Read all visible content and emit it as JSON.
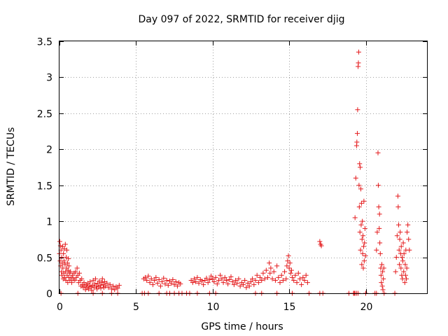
{
  "chart_data": {
    "type": "scatter",
    "title": "Day 097 of 2022, SRMTID for receiver djig",
    "xlabel": "GPS time / hours",
    "ylabel": "SRMTID / TECUs",
    "xlim": [
      0,
      24
    ],
    "ylim": [
      0,
      3.5
    ],
    "x_ticks": [
      0,
      5,
      10,
      15,
      20
    ],
    "x_tick_labels": [
      "0",
      "5",
      "10",
      "15",
      "20"
    ],
    "y_ticks": [
      0,
      0.5,
      1,
      1.5,
      2,
      2.5,
      3,
      3.5
    ],
    "y_tick_labels": [
      "0",
      "0.5",
      "1",
      "1.5",
      "2",
      "2.5",
      "3",
      "3.5"
    ],
    "grid": true,
    "marker": "plus",
    "color": "#e41a1c",
    "series": [
      {
        "name": "SRMTID",
        "points": [
          [
            0.0,
            0.55
          ],
          [
            0.02,
            0.72
          ],
          [
            0.04,
            0.45
          ],
          [
            0.06,
            0.66
          ],
          [
            0.08,
            0.38
          ],
          [
            0.1,
            0.6
          ],
          [
            0.12,
            0.3
          ],
          [
            0.14,
            0.5
          ],
          [
            0.16,
            0.25
          ],
          [
            0.18,
            0.42
          ],
          [
            0.2,
            0.65
          ],
          [
            0.22,
            0.35
          ],
          [
            0.24,
            0.2
          ],
          [
            0.26,
            0.55
          ],
          [
            0.28,
            0.28
          ],
          [
            0.3,
            0.45
          ],
          [
            0.32,
            0.62
          ],
          [
            0.34,
            0.22
          ],
          [
            0.36,
            0.4
          ],
          [
            0.38,
            0.68
          ],
          [
            0.4,
            0.3
          ],
          [
            0.42,
            0.18
          ],
          [
            0.44,
            0.5
          ],
          [
            0.46,
            0.35
          ],
          [
            0.48,
            0.6
          ],
          [
            0.5,
            0.25
          ],
          [
            0.52,
            0.42
          ],
          [
            0.54,
            0.15
          ],
          [
            0.56,
            0.32
          ],
          [
            0.58,
            0.48
          ],
          [
            0.6,
            0.22
          ],
          [
            0.62,
            0.38
          ],
          [
            0.65,
            0.28
          ],
          [
            0.68,
            0.18
          ],
          [
            0.72,
            0.3
          ],
          [
            0.76,
            0.22
          ],
          [
            0.8,
            0.15
          ],
          [
            0.85,
            0.25
          ],
          [
            0.9,
            0.2
          ],
          [
            0.95,
            0.28
          ],
          [
            1.0,
            0.18
          ],
          [
            1.05,
            0.3
          ],
          [
            1.1,
            0.22
          ],
          [
            1.15,
            0.35
          ],
          [
            1.2,
            0.25
          ],
          [
            1.25,
            0.15
          ],
          [
            1.3,
            0.28
          ],
          [
            1.35,
            0.18
          ],
          [
            1.4,
            0.1
          ],
          [
            1.45,
            0.2
          ],
          [
            1.5,
            0.12
          ],
          [
            1.55,
            0.08
          ],
          [
            1.6,
            0.15
          ],
          [
            1.65,
            0.1
          ],
          [
            1.7,
            0.05
          ],
          [
            1.75,
            0.12
          ],
          [
            1.8,
            0.08
          ],
          [
            1.85,
            0.14
          ],
          [
            1.9,
            0.06
          ],
          [
            1.95,
            0.1
          ],
          [
            2.0,
            0.16
          ],
          [
            2.05,
            0.09
          ],
          [
            2.1,
            0.04
          ],
          [
            2.15,
            0.11
          ],
          [
            2.2,
            0.18
          ],
          [
            2.25,
            0.08
          ],
          [
            2.3,
            0.13
          ],
          [
            2.35,
            0.2
          ],
          [
            2.4,
            0.1
          ],
          [
            2.45,
            0.06
          ],
          [
            2.5,
            0.14
          ],
          [
            2.55,
            0.09
          ],
          [
            2.6,
            0.17
          ],
          [
            2.65,
            0.11
          ],
          [
            2.7,
            0.07
          ],
          [
            2.75,
            0.15
          ],
          [
            2.8,
            0.2
          ],
          [
            2.85,
            0.12
          ],
          [
            2.9,
            0.08
          ],
          [
            2.95,
            0.16
          ],
          [
            3.0,
            0.1
          ],
          [
            3.1,
            0.14
          ],
          [
            3.2,
            0.08
          ],
          [
            3.3,
            0.12
          ],
          [
            3.4,
            0.06
          ],
          [
            3.5,
            0.1
          ],
          [
            3.6,
            0.05
          ],
          [
            3.7,
            0.09
          ],
          [
            3.8,
            0.07
          ],
          [
            3.9,
            0.11
          ],
          [
            0.1,
            0.0
          ],
          [
            1.2,
            0.0
          ],
          [
            2.2,
            0.0
          ],
          [
            2.8,
            0.0
          ],
          [
            3.4,
            0.0
          ],
          [
            3.8,
            0.0
          ],
          [
            5.4,
            0.0
          ],
          [
            5.55,
            0.0
          ],
          [
            5.8,
            0.0
          ],
          [
            6.5,
            0.0
          ],
          [
            7.0,
            0.0
          ],
          [
            7.2,
            0.0
          ],
          [
            7.5,
            0.0
          ],
          [
            7.8,
            0.0
          ],
          [
            8.0,
            0.0
          ],
          [
            8.3,
            0.0
          ],
          [
            8.5,
            0.0
          ],
          [
            9.0,
            0.0
          ],
          [
            9.8,
            0.0
          ],
          [
            10.2,
            0.0
          ],
          [
            5.5,
            0.2
          ],
          [
            5.6,
            0.22
          ],
          [
            5.7,
            0.18
          ],
          [
            5.8,
            0.24
          ],
          [
            5.9,
            0.15
          ],
          [
            6.0,
            0.2
          ],
          [
            6.1,
            0.12
          ],
          [
            6.2,
            0.18
          ],
          [
            6.3,
            0.22
          ],
          [
            6.4,
            0.14
          ],
          [
            6.5,
            0.19
          ],
          [
            6.6,
            0.1
          ],
          [
            6.7,
            0.16
          ],
          [
            6.8,
            0.21
          ],
          [
            6.9,
            0.13
          ],
          [
            7.0,
            0.18
          ],
          [
            7.1,
            0.11
          ],
          [
            7.2,
            0.17
          ],
          [
            7.3,
            0.14
          ],
          [
            7.4,
            0.19
          ],
          [
            7.5,
            0.12
          ],
          [
            7.6,
            0.16
          ],
          [
            7.7,
            0.1
          ],
          [
            7.8,
            0.15
          ],
          [
            7.9,
            0.13
          ],
          [
            8.6,
            0.18
          ],
          [
            8.7,
            0.15
          ],
          [
            8.8,
            0.2
          ],
          [
            8.9,
            0.16
          ],
          [
            9.0,
            0.22
          ],
          [
            9.1,
            0.14
          ],
          [
            9.2,
            0.19
          ],
          [
            9.3,
            0.17
          ],
          [
            9.4,
            0.12
          ],
          [
            9.5,
            0.18
          ],
          [
            9.6,
            0.21
          ],
          [
            9.7,
            0.15
          ],
          [
            9.8,
            0.19
          ],
          [
            9.9,
            0.24
          ],
          [
            10.0,
            0.2
          ],
          [
            10.1,
            0.16
          ],
          [
            10.2,
            0.22
          ],
          [
            10.3,
            0.13
          ],
          [
            10.4,
            0.18
          ],
          [
            10.5,
            0.25
          ],
          [
            10.6,
            0.2
          ],
          [
            10.7,
            0.15
          ],
          [
            10.8,
            0.22
          ],
          [
            10.9,
            0.18
          ],
          [
            11.0,
            0.13
          ],
          [
            11.1,
            0.19
          ],
          [
            11.2,
            0.23
          ],
          [
            11.3,
            0.16
          ],
          [
            11.4,
            0.12
          ],
          [
            11.5,
            0.18
          ],
          [
            11.6,
            0.14
          ],
          [
            11.7,
            0.2
          ],
          [
            11.8,
            0.1
          ],
          [
            11.9,
            0.15
          ],
          [
            12.0,
            0.12
          ],
          [
            12.1,
            0.18
          ],
          [
            12.2,
            0.08
          ],
          [
            12.3,
            0.14
          ],
          [
            12.4,
            0.1
          ],
          [
            12.5,
            0.16
          ],
          [
            12.6,
            0.2
          ],
          [
            12.7,
            0.12
          ],
          [
            12.8,
            0.18
          ],
          [
            12.9,
            0.25
          ],
          [
            13.0,
            0.15
          ],
          [
            13.1,
            0.22
          ],
          [
            13.2,
            0.18
          ],
          [
            13.3,
            0.28
          ],
          [
            13.4,
            0.2
          ],
          [
            13.5,
            0.32
          ],
          [
            13.6,
            0.22
          ],
          [
            13.7,
            0.42
          ],
          [
            13.75,
            0.28
          ],
          [
            13.8,
            0.35
          ],
          [
            13.9,
            0.2
          ],
          [
            14.0,
            0.3
          ],
          [
            14.1,
            0.18
          ],
          [
            14.2,
            0.38
          ],
          [
            14.3,
            0.22
          ],
          [
            14.4,
            0.15
          ],
          [
            14.5,
            0.25
          ],
          [
            14.6,
            0.18
          ],
          [
            14.7,
            0.3
          ],
          [
            14.8,
            0.2
          ],
          [
            14.85,
            0.38
          ],
          [
            14.9,
            0.45
          ],
          [
            14.95,
            0.52
          ],
          [
            15.0,
            0.35
          ],
          [
            15.05,
            0.42
          ],
          [
            15.1,
            0.28
          ],
          [
            15.15,
            0.32
          ],
          [
            15.2,
            0.22
          ],
          [
            15.3,
            0.18
          ],
          [
            15.4,
            0.25
          ],
          [
            15.5,
            0.15
          ],
          [
            15.6,
            0.28
          ],
          [
            15.7,
            0.2
          ],
          [
            15.8,
            0.12
          ],
          [
            15.9,
            0.22
          ],
          [
            16.0,
            0.18
          ],
          [
            16.1,
            0.25
          ],
          [
            16.2,
            0.15
          ],
          [
            12.8,
            0.0
          ],
          [
            13.2,
            0.0
          ],
          [
            14.2,
            0.0
          ],
          [
            15.2,
            0.0
          ],
          [
            16.3,
            0.0
          ],
          [
            17.0,
            0.72
          ],
          [
            17.05,
            0.68
          ],
          [
            17.1,
            0.66
          ],
          [
            17.0,
            0.0
          ],
          [
            17.2,
            0.0
          ],
          [
            18.9,
            0.0
          ],
          [
            19.2,
            0.0
          ],
          [
            19.25,
            0.0
          ],
          [
            19.3,
            0.0
          ],
          [
            19.4,
            0.0
          ],
          [
            19.5,
            0.0
          ],
          [
            19.3,
            1.05
          ],
          [
            19.35,
            1.6
          ],
          [
            19.4,
            2.05
          ],
          [
            19.42,
            2.1
          ],
          [
            19.45,
            2.22
          ],
          [
            19.47,
            2.55
          ],
          [
            19.5,
            3.15
          ],
          [
            19.52,
            3.2
          ],
          [
            19.54,
            3.35
          ],
          [
            19.56,
            1.5
          ],
          [
            19.58,
            1.2
          ],
          [
            19.6,
            1.8
          ],
          [
            19.62,
            0.85
          ],
          [
            19.64,
            1.75
          ],
          [
            19.66,
            0.6
          ],
          [
            19.68,
            1.45
          ],
          [
            19.7,
            0.95
          ],
          [
            19.72,
            1.25
          ],
          [
            19.74,
            0.4
          ],
          [
            19.76,
            0.75
          ],
          [
            19.78,
            1.0
          ],
          [
            19.8,
            0.55
          ],
          [
            19.82,
            0.8
          ],
          [
            19.84,
            0.35
          ],
          [
            19.86,
            0.65
          ],
          [
            19.88,
            1.28
          ],
          [
            19.9,
            0.45
          ],
          [
            19.92,
            0.7
          ],
          [
            19.95,
            0.9
          ],
          [
            19.98,
            0.52
          ],
          [
            20.0,
            0.0
          ],
          [
            20.6,
            0.0
          ],
          [
            20.7,
            0.0
          ],
          [
            20.7,
            0.6
          ],
          [
            20.75,
            0.85
          ],
          [
            20.8,
            1.95
          ],
          [
            20.82,
            1.5
          ],
          [
            20.85,
            1.2
          ],
          [
            20.88,
            0.9
          ],
          [
            20.9,
            1.1
          ],
          [
            20.92,
            0.7
          ],
          [
            20.95,
            0.55
          ],
          [
            20.98,
            0.35
          ],
          [
            21.0,
            0.25
          ],
          [
            21.02,
            0.15
          ],
          [
            21.05,
            0.4
          ],
          [
            21.08,
            0.1
          ],
          [
            21.1,
            0.3
          ],
          [
            21.12,
            0.05
          ],
          [
            21.15,
            0.2
          ],
          [
            21.18,
            0.35
          ],
          [
            21.2,
            0.0
          ],
          [
            21.9,
            0.0
          ],
          [
            21.95,
            0.3
          ],
          [
            22.0,
            0.5
          ],
          [
            22.05,
            0.8
          ],
          [
            22.1,
            1.35
          ],
          [
            22.12,
            1.2
          ],
          [
            22.15,
            0.95
          ],
          [
            22.18,
            0.6
          ],
          [
            22.2,
            0.4
          ],
          [
            22.22,
            0.75
          ],
          [
            22.25,
            0.85
          ],
          [
            22.28,
            0.55
          ],
          [
            22.3,
            0.35
          ],
          [
            22.32,
            0.65
          ],
          [
            22.35,
            0.25
          ],
          [
            22.38,
            0.5
          ],
          [
            22.4,
            0.2
          ],
          [
            22.42,
            0.45
          ],
          [
            22.45,
            0.7
          ],
          [
            22.48,
            0.3
          ],
          [
            22.5,
            0.55
          ],
          [
            22.55,
            0.15
          ],
          [
            22.58,
            0.4
          ],
          [
            22.6,
            0.25
          ],
          [
            22.62,
            0.6
          ],
          [
            22.65,
            0.2
          ],
          [
            22.68,
            0.35
          ],
          [
            22.7,
            0.85
          ],
          [
            22.75,
            0.95
          ],
          [
            22.8,
            0.75
          ],
          [
            22.85,
            0.6
          ]
        ]
      }
    ]
  }
}
